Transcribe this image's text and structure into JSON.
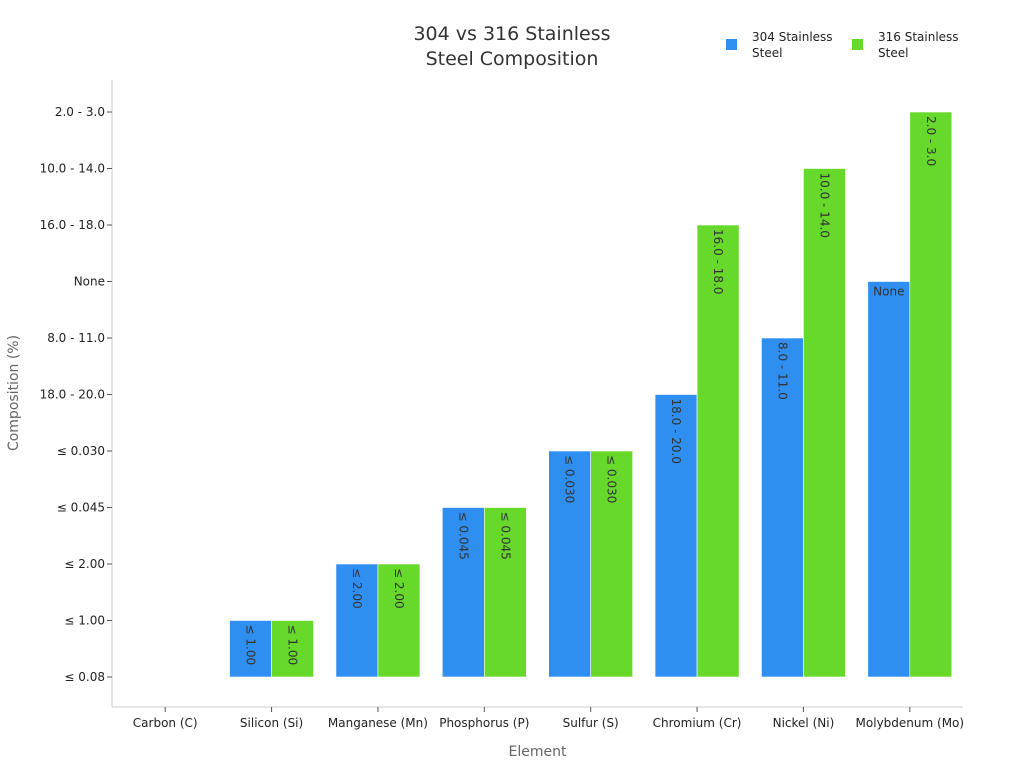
{
  "chart_data": {
    "type": "bar",
    "title": "304 vs 316 Stainless Steel Composition",
    "title_lines": [
      "304 vs 316 Stainless",
      "Steel Composition"
    ],
    "xlabel": "Element",
    "ylabel": "Composition (%)",
    "categories": [
      "Carbon (C)",
      "Silicon (Si)",
      "Manganese (Mn)",
      "Phosphorus (P)",
      "Sulfur (S)",
      "Chromium (Cr)",
      "Nickel (Ni)",
      "Molybdenum (Mo)"
    ],
    "y_ticks": [
      "≤ 0.08",
      "≤ 1.00",
      "≤ 2.00",
      "≤ 0.045",
      "≤ 0.030",
      "18.0 - 20.0",
      "8.0 - 11.0",
      "None",
      "16.0 - 18.0",
      "10.0 - 14.0",
      "2.0 - 3.0"
    ],
    "series": [
      {
        "name": "304 Stainless Steel",
        "legend_lines": [
          "304 Stainless",
          "Steel"
        ],
        "color": "#2f8ff0",
        "values": [
          "≤ 0.08",
          "≤ 1.00",
          "≤ 2.00",
          "≤ 0.045",
          "≤ 0.030",
          "18.0 - 20.0",
          "8.0 - 11.0",
          "None"
        ]
      },
      {
        "name": "316 Stainless Steel",
        "legend_lines": [
          "316 Stainless",
          "Steel"
        ],
        "color": "#66d92a",
        "values": [
          "≤ 0.08",
          "≤ 1.00",
          "≤ 2.00",
          "≤ 0.045",
          "≤ 0.030",
          "16.0 - 18.0",
          "10.0 - 14.0",
          "2.0 - 3.0"
        ]
      }
    ],
    "legend_position": "top-right",
    "grid": false
  }
}
